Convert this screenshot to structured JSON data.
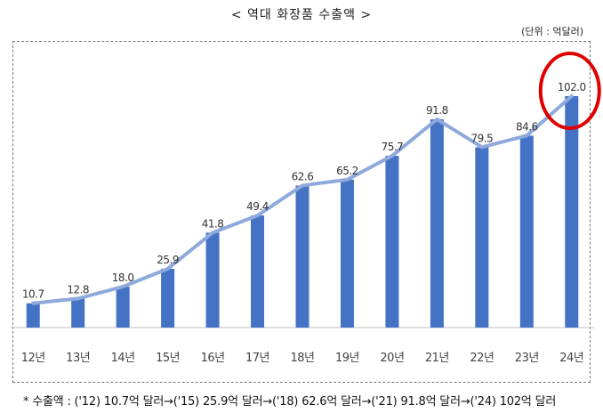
{
  "title": "< 역대 화장품 수출액 >",
  "unit_label": "(단위 : 억달러)",
  "footnote": "* 수출액 : ('12) 10.7억 달러→('15) 25.9억 달러→('18) 62.6억 달러→('21) 91.8억 달러→('24) 102억 달러",
  "colors": {
    "bar": "#4472C4",
    "line": "#8EA9DB",
    "highlight": "#E00000",
    "axis": "#bfbfbf"
  },
  "chart_data": {
    "type": "bar",
    "categories": [
      "12년",
      "13년",
      "14년",
      "15년",
      "16년",
      "17년",
      "18년",
      "19년",
      "20년",
      "21년",
      "22년",
      "23년",
      "24년"
    ],
    "values": [
      10.7,
      12.8,
      18.0,
      25.9,
      41.8,
      49.4,
      62.6,
      65.2,
      75.7,
      91.8,
      79.5,
      84.6,
      102.0
    ],
    "data_labels": [
      "10.7",
      "12.8",
      "18.0",
      "25.9",
      "41.8",
      "49.4",
      "62.6",
      "65.2",
      "75.7",
      "91.8",
      "79.5",
      "84.6",
      "102.0"
    ],
    "overlay_line": true,
    "highlighted_category": "24년",
    "ylim": [
      0,
      110
    ],
    "xlabel": "",
    "ylabel": "",
    "grid": false
  }
}
